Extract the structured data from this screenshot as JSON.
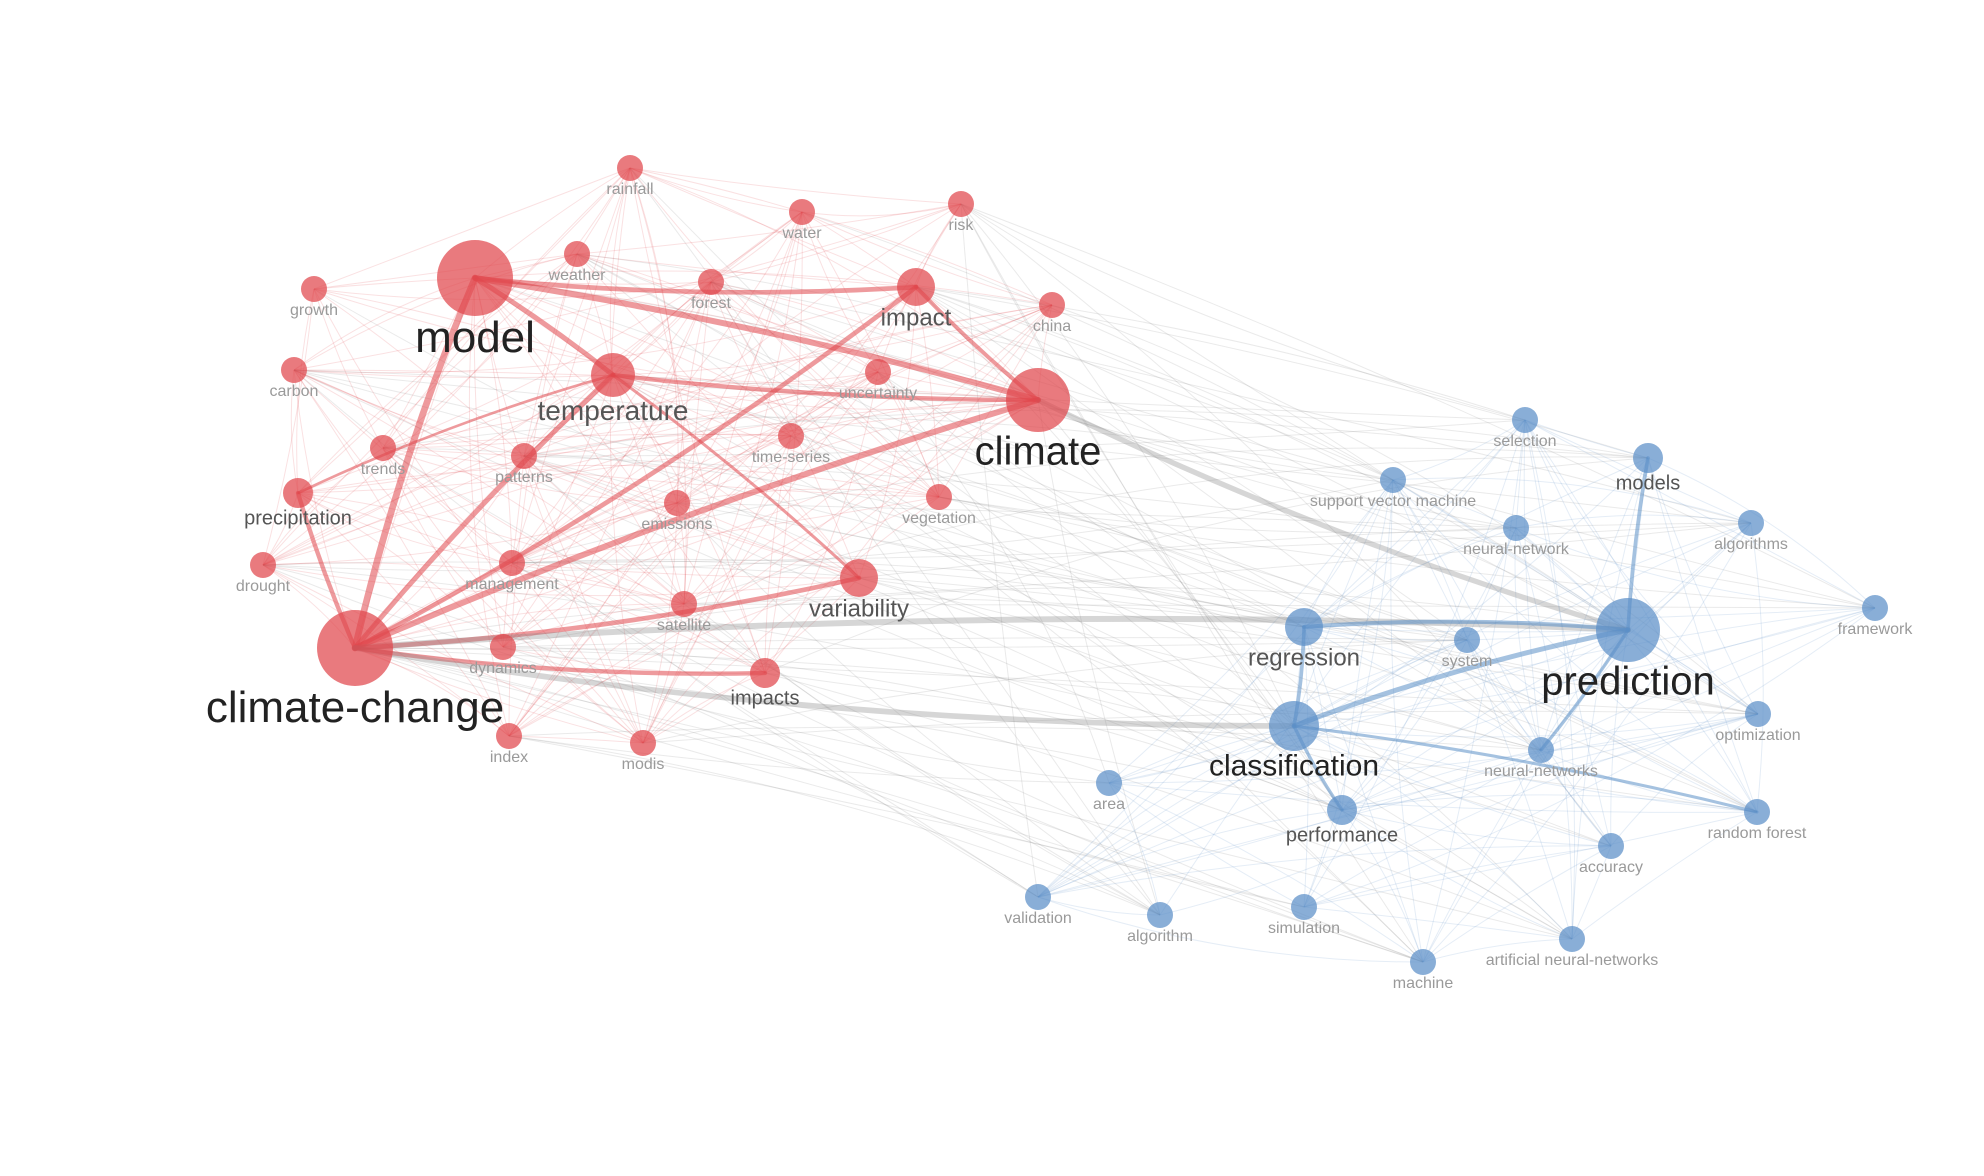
{
  "clusters": [
    {
      "id": "red",
      "color": "#e0474c"
    },
    {
      "id": "blue",
      "color": "#5b8fc7"
    }
  ],
  "edge_color_cross": "#8a8a8a",
  "nodes": [
    {
      "id": "model",
      "label": "model",
      "cluster": "red",
      "weight": 10
    },
    {
      "id": "climate-change",
      "label": "climate-change",
      "cluster": "red",
      "weight": 10
    },
    {
      "id": "climate",
      "label": "climate",
      "cluster": "red",
      "weight": 8
    },
    {
      "id": "temperature",
      "label": "temperature",
      "cluster": "red",
      "weight": 5
    },
    {
      "id": "variability",
      "label": "variability",
      "cluster": "red",
      "weight": 4
    },
    {
      "id": "impact",
      "label": "impact",
      "cluster": "red",
      "weight": 4
    },
    {
      "id": "rainfall",
      "label": "rainfall",
      "cluster": "red",
      "weight": 2
    },
    {
      "id": "water",
      "label": "water",
      "cluster": "red",
      "weight": 2
    },
    {
      "id": "risk",
      "label": "risk",
      "cluster": "red",
      "weight": 2
    },
    {
      "id": "weather",
      "label": "weather",
      "cluster": "red",
      "weight": 2
    },
    {
      "id": "forest",
      "label": "forest",
      "cluster": "red",
      "weight": 2
    },
    {
      "id": "growth",
      "label": "growth",
      "cluster": "red",
      "weight": 2
    },
    {
      "id": "china",
      "label": "china",
      "cluster": "red",
      "weight": 2
    },
    {
      "id": "carbon",
      "label": "carbon",
      "cluster": "red",
      "weight": 2
    },
    {
      "id": "uncertainty",
      "label": "uncertainty",
      "cluster": "red",
      "weight": 2
    },
    {
      "id": "trends",
      "label": "trends",
      "cluster": "red",
      "weight": 2
    },
    {
      "id": "patterns",
      "label": "patterns",
      "cluster": "red",
      "weight": 2
    },
    {
      "id": "time-series",
      "label": "time-series",
      "cluster": "red",
      "weight": 2
    },
    {
      "id": "precipitation",
      "label": "precipitation",
      "cluster": "red",
      "weight": 3
    },
    {
      "id": "emissions",
      "label": "emissions",
      "cluster": "red",
      "weight": 2
    },
    {
      "id": "vegetation",
      "label": "vegetation",
      "cluster": "red",
      "weight": 2
    },
    {
      "id": "drought",
      "label": "drought",
      "cluster": "red",
      "weight": 2
    },
    {
      "id": "management",
      "label": "management",
      "cluster": "red",
      "weight": 2
    },
    {
      "id": "satellite",
      "label": "satellite",
      "cluster": "red",
      "weight": 2
    },
    {
      "id": "dynamics",
      "label": "dynamics",
      "cluster": "red",
      "weight": 2
    },
    {
      "id": "impacts",
      "label": "impacts",
      "cluster": "red",
      "weight": 3
    },
    {
      "id": "index",
      "label": "index",
      "cluster": "red",
      "weight": 2
    },
    {
      "id": "modis",
      "label": "modis",
      "cluster": "red",
      "weight": 2
    },
    {
      "id": "selection",
      "label": "selection",
      "cluster": "blue",
      "weight": 2
    },
    {
      "id": "models",
      "label": "models",
      "cluster": "blue",
      "weight": 3
    },
    {
      "id": "svm",
      "label": "support vector machine",
      "cluster": "blue",
      "weight": 2
    },
    {
      "id": "neural-network",
      "label": "neural-network",
      "cluster": "blue",
      "weight": 2
    },
    {
      "id": "algorithms",
      "label": "algorithms",
      "cluster": "blue",
      "weight": 2
    },
    {
      "id": "framework",
      "label": "framework",
      "cluster": "blue",
      "weight": 2
    },
    {
      "id": "regression",
      "label": "regression",
      "cluster": "blue",
      "weight": 4
    },
    {
      "id": "system",
      "label": "system",
      "cluster": "blue",
      "weight": 2
    },
    {
      "id": "prediction",
      "label": "prediction",
      "cluster": "blue",
      "weight": 8
    },
    {
      "id": "classification",
      "label": "classification",
      "cluster": "blue",
      "weight": 7
    },
    {
      "id": "optimization",
      "label": "optimization",
      "cluster": "blue",
      "weight": 2
    },
    {
      "id": "neural-networks",
      "label": "neural-networks",
      "cluster": "blue",
      "weight": 2
    },
    {
      "id": "area",
      "label": "area",
      "cluster": "blue",
      "weight": 2
    },
    {
      "id": "performance",
      "label": "performance",
      "cluster": "blue",
      "weight": 3
    },
    {
      "id": "random-forest",
      "label": "random forest",
      "cluster": "blue",
      "weight": 2
    },
    {
      "id": "accuracy",
      "label": "accuracy",
      "cluster": "blue",
      "weight": 2
    },
    {
      "id": "validation",
      "label": "validation",
      "cluster": "blue",
      "weight": 2
    },
    {
      "id": "algorithm",
      "label": "algorithm",
      "cluster": "blue",
      "weight": 2
    },
    {
      "id": "simulation",
      "label": "simulation",
      "cluster": "blue",
      "weight": 2
    },
    {
      "id": "machine",
      "label": "machine",
      "cluster": "blue",
      "weight": 2
    },
    {
      "id": "ann",
      "label": "artificial neural-networks",
      "cluster": "blue",
      "weight": 2
    }
  ],
  "strong_edges": [
    [
      "model",
      "climate"
    ],
    [
      "model",
      "climate-change"
    ],
    [
      "model",
      "temperature"
    ],
    [
      "model",
      "impact"
    ],
    [
      "climate-change",
      "climate"
    ],
    [
      "climate-change",
      "impact"
    ],
    [
      "climate-change",
      "temperature"
    ],
    [
      "climate-change",
      "impacts"
    ],
    [
      "climate-change",
      "precipitation"
    ],
    [
      "climate-change",
      "variability"
    ],
    [
      "climate-change",
      "prediction"
    ],
    [
      "climate-change",
      "classification"
    ],
    [
      "climate",
      "temperature"
    ],
    [
      "climate",
      "prediction"
    ],
    [
      "climate",
      "impact"
    ],
    [
      "temperature",
      "precipitation"
    ],
    [
      "temperature",
      "variability"
    ],
    [
      "prediction",
      "regression"
    ],
    [
      "prediction",
      "models"
    ],
    [
      "prediction",
      "classification"
    ],
    [
      "prediction",
      "neural-networks"
    ],
    [
      "classification",
      "regression"
    ],
    [
      "classification",
      "random-forest"
    ],
    [
      "classification",
      "performance"
    ]
  ]
}
